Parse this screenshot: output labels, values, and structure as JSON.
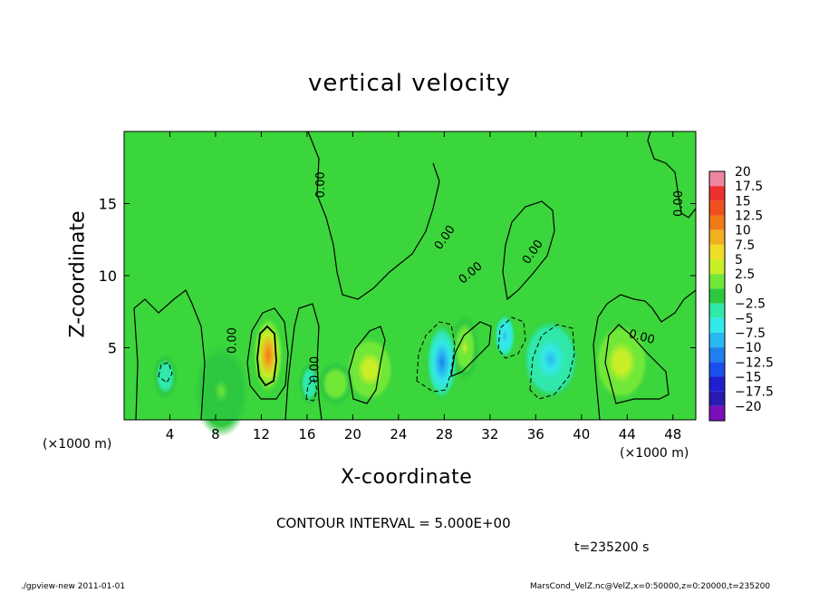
{
  "chart_data": {
    "type": "heatmap",
    "title": "vertical velocity",
    "xlabel": "X-coordinate",
    "ylabel": "Z-coordinate",
    "x_unit_label": "(×1000 m)",
    "xlim": [
      0,
      50
    ],
    "ylim": [
      0,
      20
    ],
    "x_ticks": [
      4,
      8,
      12,
      16,
      20,
      24,
      28,
      32,
      36,
      40,
      44,
      48
    ],
    "y_ticks": [
      5,
      10,
      15
    ],
    "colorbar": {
      "levels": [
        -20,
        -17.5,
        -15,
        -12.5,
        -10,
        -7.5,
        -5,
        -2.5,
        0,
        2.5,
        5,
        7.5,
        10,
        12.5,
        15,
        17.5,
        20
      ],
      "labels": [
        "20",
        "17.5",
        "15",
        "12.5",
        "10",
        "7.5",
        "5",
        "2.5",
        "0",
        "−2.5",
        "−5",
        "−7.5",
        "−10",
        "−12.5",
        "−15",
        "−17.5",
        "−20"
      ],
      "colors": [
        "#ee85a0",
        "#ee3030",
        "#f05020",
        "#f07a18",
        "#f0b020",
        "#f0dd2a",
        "#c8ee28",
        "#70e838",
        "#2ec840",
        "#2fe8aa",
        "#33e8e8",
        "#2ab8f0",
        "#2080f0",
        "#1a4fee",
        "#2020d0",
        "#2a1ab0",
        "#7a10b8"
      ]
    },
    "contour_labels": [
      "0.00",
      "0.00",
      "0.00",
      "0.00",
      "0.00",
      "0.00",
      "0.00",
      "0.00"
    ],
    "contour_interval": "CONTOUR INTERVAL = 5.000E+00",
    "time_label": "t=235200 s",
    "features": [
      {
        "x": 12.6,
        "z": 4.5,
        "value": 12.0,
        "sx": 0.9,
        "sz": 1.8
      },
      {
        "x": 21.5,
        "z": 3.5,
        "value": 6.0,
        "sx": 1.4,
        "sz": 1.5
      },
      {
        "x": 18.5,
        "z": 2.5,
        "value": 3.0,
        "sx": 1.0,
        "sz": 1.0
      },
      {
        "x": 29.8,
        "z": 5.0,
        "value": 5.0,
        "sx": 0.8,
        "sz": 1.5
      },
      {
        "x": 43.5,
        "z": 4.0,
        "value": 5.5,
        "sx": 1.6,
        "sz": 1.8
      },
      {
        "x": 27.8,
        "z": 4.0,
        "value": -11.0,
        "sx": 0.9,
        "sz": 1.7
      },
      {
        "x": 33.3,
        "z": 5.8,
        "value": -8.0,
        "sx": 0.6,
        "sz": 1.0
      },
      {
        "x": 37.3,
        "z": 4.2,
        "value": -6.5,
        "sx": 1.6,
        "sz": 1.8
      },
      {
        "x": 3.6,
        "z": 3.0,
        "value": -3.5,
        "sx": 0.7,
        "sz": 1.0
      },
      {
        "x": 16.2,
        "z": 2.5,
        "value": -3.0,
        "sx": 0.6,
        "sz": 1.0
      },
      {
        "x": 8.5,
        "z": 2.0,
        "value": 1.5,
        "sx": 1.5,
        "sz": 2.0
      }
    ]
  },
  "footer": {
    "left": "./gpview-new   2011-01-01",
    "right": "MarsCond_VelZ.nc@VelZ,x=0:50000,z=0:20000,t=235200"
  }
}
